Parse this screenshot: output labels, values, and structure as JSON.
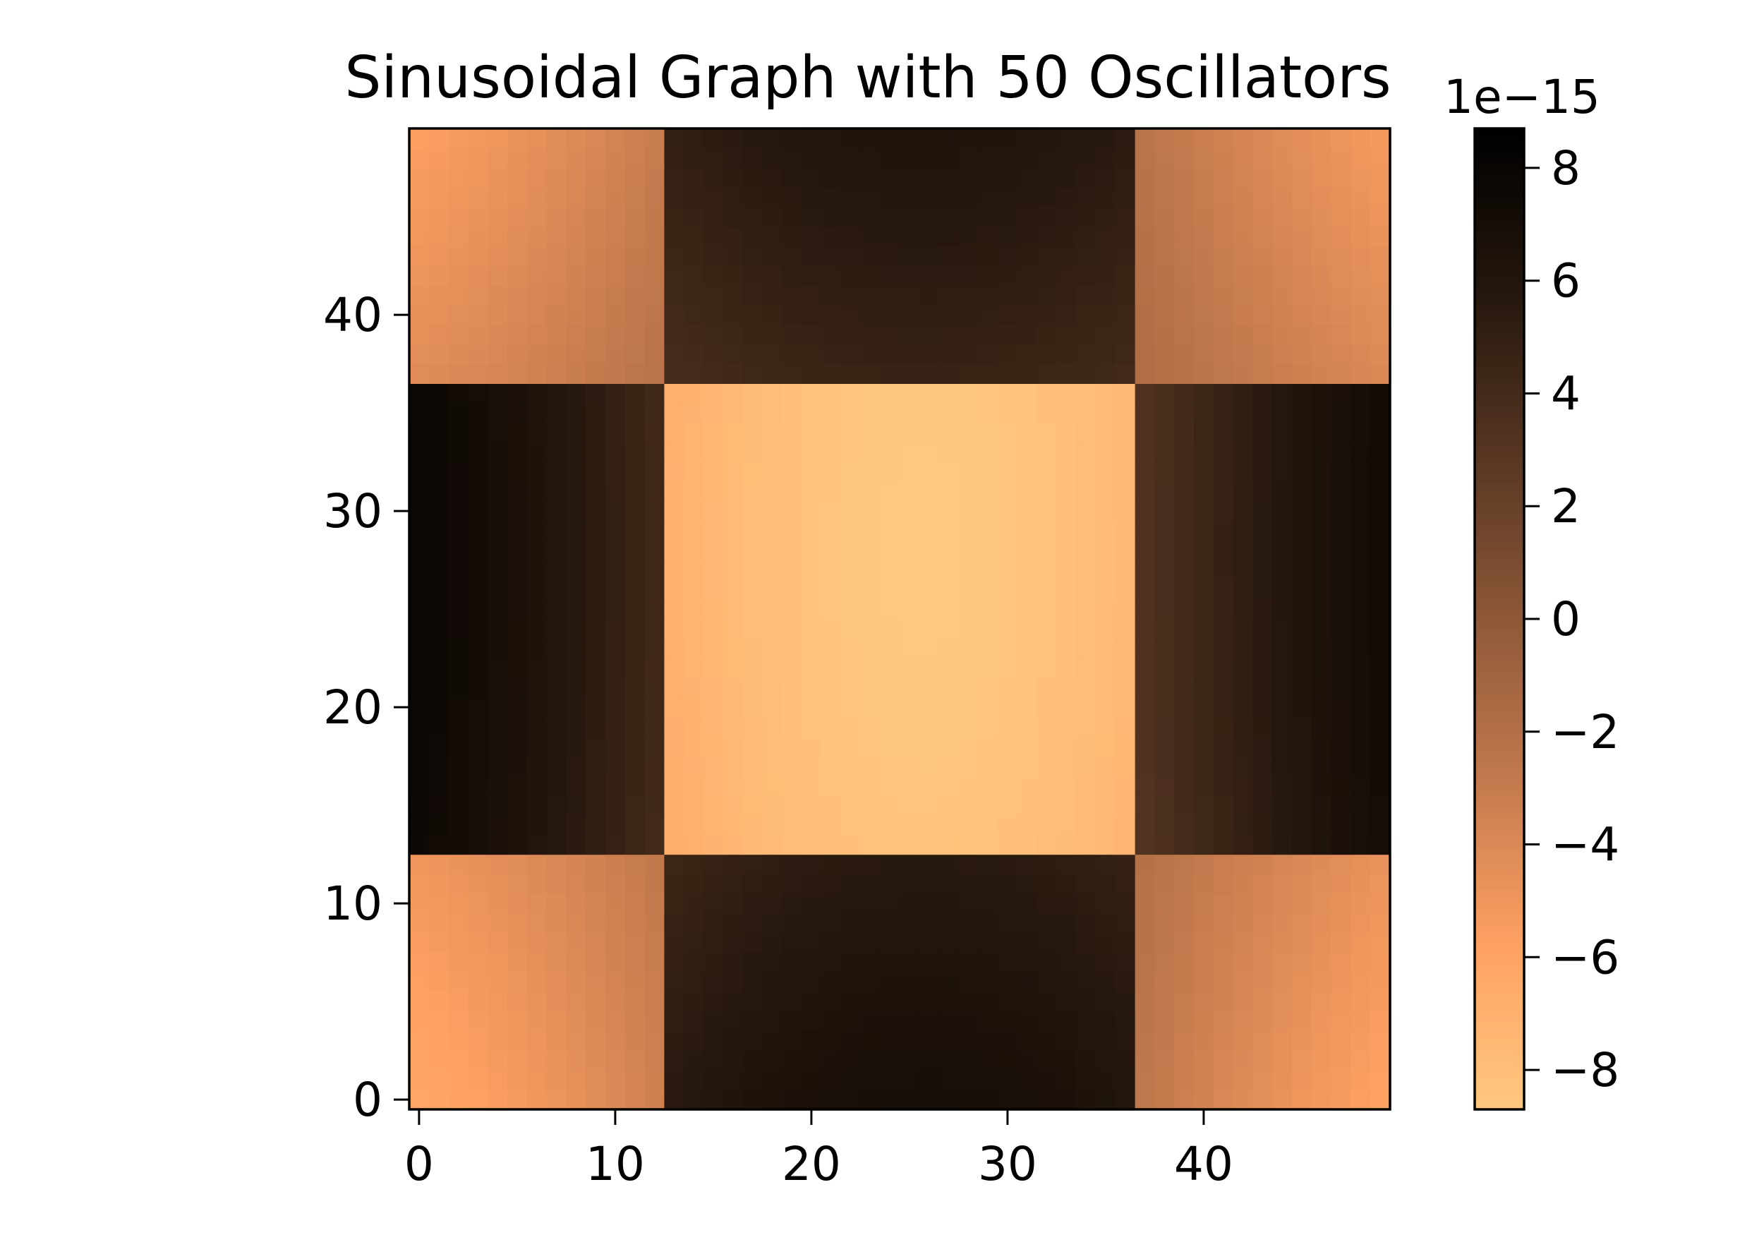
{
  "chart_data": {
    "type": "heatmap",
    "title": "Sinusoidal Graph with 50 Oscillators",
    "xlabel": "",
    "ylabel": "",
    "grid": false,
    "colormap": "copper_r",
    "x_range": [
      -0.5,
      49.5
    ],
    "y_range": [
      -0.5,
      49.5
    ],
    "x_ticks": [
      0,
      10,
      20,
      30,
      40
    ],
    "y_ticks": [
      0,
      10,
      20,
      30,
      40
    ],
    "colorbar": {
      "range": [
        -8.7,
        8.7
      ],
      "ticks": [
        8,
        6,
        4,
        2,
        0,
        -2,
        -4,
        -6,
        -8
      ],
      "tick_labels": [
        "8",
        "6",
        "4",
        "2",
        "0",
        "−2",
        "−4",
        "−6",
        "−8"
      ],
      "offset_label": "1e−15",
      "colors_low_to_high": [
        "#ffc87f",
        "#ffa162",
        "#c47a4e",
        "#8e5838",
        "#573622",
        "#25170d",
        "#000000"
      ]
    },
    "structure": {
      "center_block_x": [
        13,
        36
      ],
      "center_block_y": [
        13,
        36
      ],
      "value_formula": "v(x,y) = -8.7e-15 * cos(2*pi*bx/50) * cos(2*pi*by/50), b = centre of the 12/24/14-wide band containing the index",
      "band_edges": [
        12.5,
        36.5
      ]
    },
    "grid_size": [
      50,
      50
    ]
  }
}
